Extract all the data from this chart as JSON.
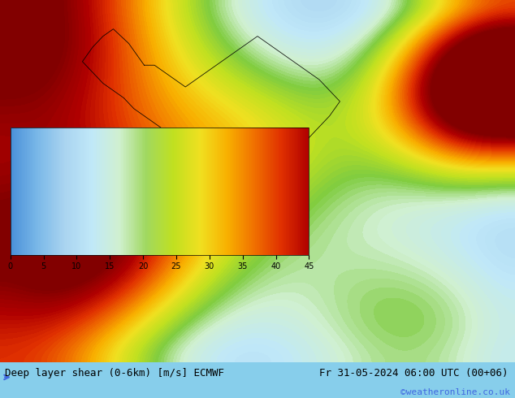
{
  "title_left": "Deep layer shear (0-6km) [m/s] ECMWF",
  "title_right": "Fr 31-05-2024 06:00 UTC (00+06)",
  "credit": "©weatheronline.co.uk",
  "colorbar_label": "Deep layer shear (0–6km) [m/s] ECMWF",
  "colorbar_ticks": [
    0,
    5,
    10,
    15,
    20,
    25,
    30,
    35,
    40,
    45
  ],
  "colorbar_min": 0,
  "colorbar_max": 45,
  "fig_width": 6.34,
  "fig_height": 4.9,
  "dpi": 100,
  "background_color": "#87CEEB",
  "map_bg_color": "#add8e6",
  "colormap_colors": [
    "#4a90d9",
    "#6db8e8",
    "#a8d8f0",
    "#c8e8f8",
    "#d8f0e0",
    "#90d060",
    "#b8e030",
    "#f0e020",
    "#f8c000",
    "#f89000",
    "#f05000",
    "#d02010",
    "#a00000"
  ],
  "bottom_bar_height": 0.08,
  "bottom_text_color": "#000000",
  "font_size_title": 9,
  "font_size_credit": 8,
  "font_size_ticks": 7,
  "font_family": "monospace",
  "arrow_color": "#4169E1"
}
